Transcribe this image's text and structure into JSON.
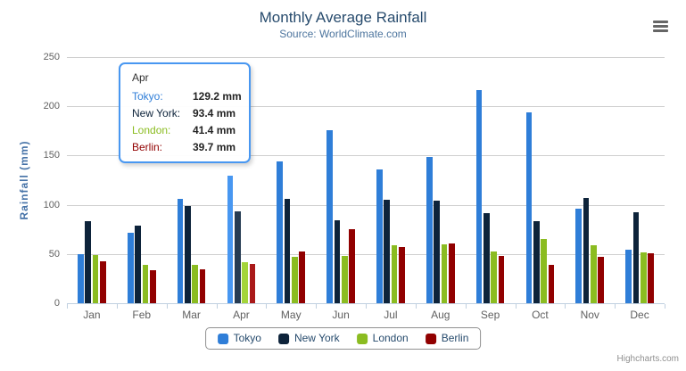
{
  "credits": "Highcharts.com",
  "chart_data": {
    "type": "bar",
    "title": "Monthly Average Rainfall",
    "subtitle": "Source: WorldClimate.com",
    "ylabel": "Rainfall (mm)",
    "xlabel": "",
    "ylim": [
      0,
      250
    ],
    "yticks": [
      0,
      50,
      100,
      150,
      200,
      250
    ],
    "grid": true,
    "legend_position": "bottom",
    "categories": [
      "Jan",
      "Feb",
      "Mar",
      "Apr",
      "May",
      "Jun",
      "Jul",
      "Aug",
      "Sep",
      "Oct",
      "Nov",
      "Dec"
    ],
    "hovered_category": "Apr",
    "series": [
      {
        "name": "Tokyo",
        "color": "#2f7ed8",
        "hover_color": "#4897f1",
        "values": [
          49.9,
          71.5,
          106.4,
          129.2,
          144.0,
          176.0,
          135.6,
          148.5,
          216.4,
          194.1,
          95.6,
          54.4
        ]
      },
      {
        "name": "New York",
        "color": "#0d233a",
        "hover_color": "#263c53",
        "values": [
          83.6,
          78.8,
          98.5,
          93.4,
          106.0,
          84.5,
          105.0,
          104.3,
          91.2,
          83.5,
          106.6,
          92.3
        ]
      },
      {
        "name": "London",
        "color": "#8bbc21",
        "hover_color": "#a4d53a",
        "values": [
          48.9,
          38.8,
          39.3,
          41.4,
          47.0,
          48.3,
          59.0,
          59.6,
          52.4,
          65.2,
          59.3,
          51.2
        ]
      },
      {
        "name": "Berlin",
        "color": "#910000",
        "hover_color": "#aa1919",
        "values": [
          42.4,
          33.2,
          34.5,
          39.7,
          52.6,
          75.5,
          57.4,
          60.4,
          47.6,
          39.1,
          46.8,
          51.1
        ]
      }
    ]
  },
  "tooltip": {
    "header": "Apr",
    "rows": [
      {
        "series": "Tokyo",
        "label": "Tokyo:",
        "value": "129.2 mm"
      },
      {
        "series": "New York",
        "label": "New York:",
        "value": "93.4 mm"
      },
      {
        "series": "London",
        "label": "London:",
        "value": "41.4 mm"
      },
      {
        "series": "Berlin",
        "label": "Berlin:",
        "value": "39.7 mm"
      }
    ]
  },
  "colors": {
    "title": "#274b6d",
    "subtitle": "#4d759e",
    "axis_title": "#4572a7",
    "axis_labels": "#606060",
    "axis_line": "#c0d0e0",
    "gridline": "#cfcfcf",
    "tooltip_border": "#4897f1",
    "legend_border": "#909090",
    "legend_text": "#274b6d",
    "credits_text": "#909090"
  }
}
